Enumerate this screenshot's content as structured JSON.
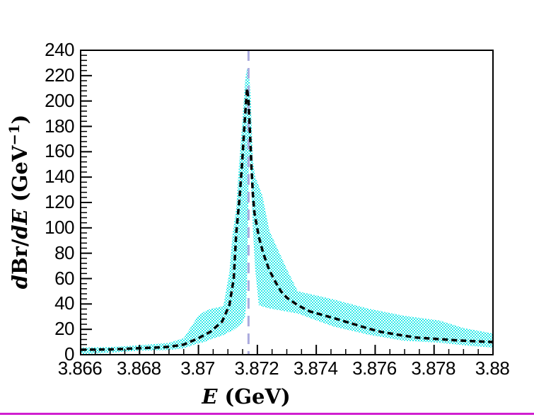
{
  "chart_data": {
    "type": "line",
    "title": "",
    "xlabel": "E (GeV)",
    "ylabel": "dBr/dE (GeV-1)",
    "xlabel_parts": [
      {
        "t": "E",
        "style": "italic"
      },
      {
        "t": " (GeV)",
        "style": "normal"
      }
    ],
    "ylabel_parts": [
      {
        "t": "d",
        "style": "italic"
      },
      {
        "t": "Br",
        "style": "normal"
      },
      {
        "t": "/",
        "style": "normal"
      },
      {
        "t": "dE",
        "style": "italic"
      },
      {
        "t": " (GeV",
        "style": "normal"
      },
      {
        "t": "−1",
        "style": "sup"
      },
      {
        "t": ")",
        "style": "normal"
      }
    ],
    "xlim": [
      3.866,
      3.88
    ],
    "ylim": [
      0,
      240
    ],
    "grid": false,
    "legend": null,
    "x_ticks": [
      {
        "v": 3.866,
        "label": "3.866"
      },
      {
        "v": 3.868,
        "label": "3.868"
      },
      {
        "v": 3.87,
        "label": "3.87"
      },
      {
        "v": 3.872,
        "label": "3.872"
      },
      {
        "v": 3.874,
        "label": "3.874"
      },
      {
        "v": 3.876,
        "label": "3.876"
      },
      {
        "v": 3.878,
        "label": "3.878"
      },
      {
        "v": 3.88,
        "label": "3.88"
      }
    ],
    "y_ticks": [
      {
        "v": 0,
        "label": "0"
      },
      {
        "v": 20,
        "label": "20"
      },
      {
        "v": 40,
        "label": "40"
      },
      {
        "v": 60,
        "label": "60"
      },
      {
        "v": 80,
        "label": "80"
      },
      {
        "v": 100,
        "label": "100"
      },
      {
        "v": 120,
        "label": "120"
      },
      {
        "v": 140,
        "label": "140"
      },
      {
        "v": 160,
        "label": "160"
      },
      {
        "v": 180,
        "label": "180"
      },
      {
        "v": 200,
        "label": "200"
      },
      {
        "v": 220,
        "label": "220"
      },
      {
        "v": 240,
        "label": "240"
      }
    ],
    "x_minor_step": 0.0005,
    "y_minor_step": 4,
    "frame_color": "#000000",
    "vline": {
      "x": 3.8717,
      "color": "#aaaade",
      "dash": [
        15,
        10
      ],
      "width": 3
    },
    "band": {
      "color": "#2ee9e9",
      "x": [
        3.866,
        3.867,
        3.868,
        3.869,
        3.8695,
        3.87,
        3.8702,
        3.8704,
        3.8708,
        3.87085,
        3.87105,
        3.87116,
        3.87128,
        3.87138,
        3.87148,
        3.87158,
        3.87162,
        3.87165,
        3.87168,
        3.87171,
        3.87174,
        3.87177,
        3.87185,
        3.87193,
        3.87205,
        3.87217,
        3.87241,
        3.87301,
        3.87337,
        3.87457,
        3.87577,
        3.87697,
        3.87817,
        3.879,
        3.88
      ],
      "lower": [
        0.5,
        1.5,
        3.2,
        3.7,
        5,
        9,
        10,
        12,
        15,
        15.5,
        18,
        19,
        21,
        23,
        25,
        30,
        39,
        60,
        100,
        150,
        155,
        147,
        98,
        67,
        39,
        38,
        36.5,
        34,
        32.5,
        22.3,
        15.8,
        11,
        9.5,
        7.5,
        5.6
      ],
      "upper": [
        5.6,
        6.0,
        7.4,
        9.3,
        13,
        31,
        34,
        36,
        38,
        39,
        65,
        95,
        115,
        150,
        180,
        215,
        222,
        225,
        225,
        224,
        215,
        205,
        153,
        140,
        133,
        125.6,
        97.7,
        67,
        50,
        43.7,
        36.3,
        30.7,
        27,
        21,
        16.7
      ]
    },
    "central": {
      "color": "#000000",
      "dash": [
        8,
        5
      ],
      "width": 3.5,
      "x": [
        3.866,
        3.8665,
        3.867,
        3.8675,
        3.868,
        3.8685,
        3.869,
        3.8695,
        3.87,
        3.8704,
        3.8708,
        3.87105,
        3.8712,
        3.87128,
        3.8714,
        3.87148,
        3.87156,
        3.87162,
        3.87165,
        3.8717,
        3.87174,
        3.87177,
        3.8718,
        3.87185,
        3.8719,
        3.87205,
        3.8722,
        3.8724,
        3.8726,
        3.8728,
        3.873,
        3.87337,
        3.8738,
        3.87457,
        3.875,
        3.87577,
        3.8762,
        3.87697,
        3.8774,
        3.87817,
        3.8788,
        3.8794,
        3.88
      ],
      "y": [
        3.9,
        4.0,
        4.2,
        4.6,
        5.2,
        5.6,
        6.2,
        8.0,
        13,
        18,
        26,
        39,
        60,
        95,
        125,
        150,
        180,
        200,
        210,
        200,
        180,
        165,
        148,
        126,
        112,
        93,
        80,
        67,
        58,
        50,
        45,
        39,
        34,
        29,
        26,
        20.6,
        18,
        15,
        13.5,
        12.3,
        11.3,
        10.6,
        10
      ]
    },
    "peak": {
      "E": 3.87165,
      "value": 210,
      "band_max": 225
    },
    "bottom_line_color": "#d01fd0"
  }
}
